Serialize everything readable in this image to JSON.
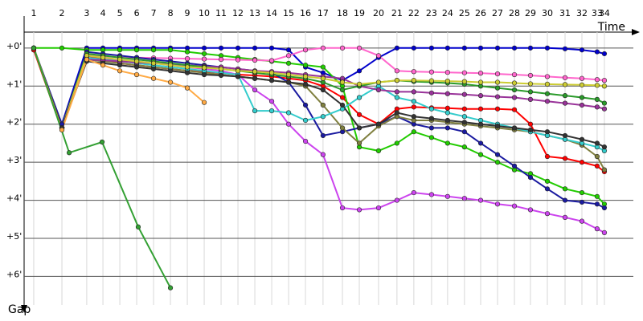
{
  "chart_data": {
    "type": "line",
    "x_label": "Time",
    "y_label": "Gap",
    "grid": true,
    "y_inverted": true,
    "xlim": [
      0.43,
      36.86
    ],
    "ylim": [
      -0.84,
      6.75
    ],
    "xticks": [
      {
        "value": 1,
        "label": "1"
      },
      {
        "value": 2.67,
        "label": "2"
      },
      {
        "value": 4.14,
        "label": "3"
      },
      {
        "value": 5.1,
        "label": "4"
      },
      {
        "value": 6.1,
        "label": "5"
      },
      {
        "value": 7.1,
        "label": "6"
      },
      {
        "value": 8.1,
        "label": "7"
      },
      {
        "value": 9.1,
        "label": "8"
      },
      {
        "value": 10.1,
        "label": "9"
      },
      {
        "value": 11.1,
        "label": "10"
      },
      {
        "value": 12.1,
        "label": "11"
      },
      {
        "value": 13.1,
        "label": "12"
      },
      {
        "value": 14.1,
        "label": "13"
      },
      {
        "value": 15.1,
        "label": "14"
      },
      {
        "value": 16.1,
        "label": "15"
      },
      {
        "value": 17.1,
        "label": "16"
      },
      {
        "value": 18.14,
        "label": "17"
      },
      {
        "value": 19.29,
        "label": "18"
      },
      {
        "value": 20.29,
        "label": "19"
      },
      {
        "value": 21.43,
        "label": "20"
      },
      {
        "value": 22.52,
        "label": "21"
      },
      {
        "value": 23.52,
        "label": "22"
      },
      {
        "value": 24.57,
        "label": "23"
      },
      {
        "value": 25.52,
        "label": "24"
      },
      {
        "value": 26.52,
        "label": "25"
      },
      {
        "value": 27.48,
        "label": "26"
      },
      {
        "value": 28.48,
        "label": "27"
      },
      {
        "value": 29.48,
        "label": "28"
      },
      {
        "value": 30.43,
        "label": "29"
      },
      {
        "value": 31.43,
        "label": "30"
      },
      {
        "value": 32.48,
        "label": "31"
      },
      {
        "value": 33.48,
        "label": "32"
      },
      {
        "value": 34.38,
        "label": "33"
      },
      {
        "value": 34.81,
        "label": "34"
      }
    ],
    "yticks": [
      {
        "value": 0,
        "label": "+0'"
      },
      {
        "value": 1,
        "label": "+1'"
      },
      {
        "value": 2,
        "label": "+2'"
      },
      {
        "value": 3,
        "label": "+3'"
      },
      {
        "value": 4,
        "label": "+4'"
      },
      {
        "value": 5,
        "label": "+5'"
      },
      {
        "value": 6,
        "label": "+6'"
      }
    ],
    "x": [
      1,
      2.67,
      4.14,
      5.1,
      6.1,
      7.1,
      8.1,
      9.1,
      10.1,
      11.1,
      12.1,
      13.1,
      14.1,
      15.1,
      16.1,
      17.1,
      18.14,
      19.29,
      20.29,
      21.43,
      22.52,
      23.52,
      24.57,
      25.52,
      26.52,
      27.48,
      28.48,
      29.48,
      30.43,
      31.43,
      32.48,
      33.48,
      34.38,
      34.81
    ],
    "series": [
      {
        "color": "#0000cc",
        "values": [
          0.05,
          2.0,
          0,
          0,
          0,
          0,
          0,
          0,
          0,
          0,
          0,
          0,
          0,
          0,
          0.05,
          0.5,
          0.65,
          0.85,
          0.6,
          0.25,
          0,
          0,
          0,
          0,
          0,
          0,
          0,
          0,
          0,
          0,
          0.02,
          0.05,
          0.1,
          0.15
        ]
      },
      {
        "color": "#ff0000",
        "values": [
          0.05,
          2.15,
          0.2,
          0.3,
          0.4,
          0.45,
          0.5,
          0.55,
          0.6,
          0.62,
          0.65,
          0.7,
          0.72,
          0.75,
          0.8,
          0.85,
          1.0,
          1.3,
          1.75,
          2.0,
          1.6,
          1.55,
          1.57,
          1.58,
          1.6,
          1.6,
          1.6,
          1.62,
          2.0,
          2.85,
          2.9,
          3.0,
          3.1,
          3.25
        ]
      },
      {
        "color": "#22cc00",
        "values": [
          0,
          0,
          0.05,
          0.05,
          0.05,
          0.05,
          0.05,
          0.05,
          0.1,
          0.15,
          0.2,
          0.25,
          0.3,
          0.35,
          0.4,
          0.45,
          0.5,
          1.0,
          2.6,
          2.7,
          2.5,
          2.2,
          2.35,
          2.5,
          2.6,
          2.8,
          3.0,
          3.2,
          3.3,
          3.5,
          3.7,
          3.8,
          3.9,
          4.1
        ]
      },
      {
        "color": "#cc44ee",
        "values": [
          0,
          2.1,
          0.3,
          0.3,
          0.32,
          0.35,
          0.4,
          0.45,
          0.5,
          0.55,
          0.6,
          0.7,
          1.1,
          1.4,
          2.0,
          2.45,
          2.8,
          4.2,
          4.25,
          4.2,
          4.0,
          3.8,
          3.85,
          3.9,
          3.95,
          4.0,
          4.1,
          4.15,
          4.25,
          4.35,
          4.45,
          4.55,
          4.75,
          4.85
        ]
      },
      {
        "color": "#ff66cc",
        "values": [
          0,
          2.1,
          0.2,
          0.22,
          0.24,
          0.25,
          0.26,
          0.27,
          0.28,
          0.29,
          0.3,
          0.31,
          0.32,
          0.33,
          0.2,
          0.05,
          0,
          0,
          0,
          0.2,
          0.6,
          0.62,
          0.63,
          0.64,
          0.65,
          0.66,
          0.68,
          0.7,
          0.72,
          0.75,
          0.78,
          0.8,
          0.83,
          0.85
        ]
      },
      {
        "color": "#1a1aa0",
        "values": [
          0,
          2.0,
          0.1,
          0.15,
          0.2,
          0.25,
          0.3,
          0.35,
          0.4,
          0.45,
          0.5,
          0.55,
          0.6,
          0.65,
          0.9,
          1.5,
          2.3,
          2.2,
          2.1,
          2.0,
          1.8,
          2.0,
          2.1,
          2.1,
          2.2,
          2.5,
          2.8,
          3.1,
          3.4,
          3.7,
          4.0,
          4.05,
          4.1,
          4.2
        ]
      },
      {
        "color": "#808040",
        "values": [
          0,
          2.1,
          0.3,
          0.35,
          0.4,
          0.45,
          0.5,
          0.55,
          0.6,
          0.65,
          0.7,
          0.75,
          0.8,
          0.85,
          0.9,
          1.0,
          1.5,
          2.1,
          2.5,
          2.05,
          1.8,
          1.9,
          1.9,
          1.95,
          2.0,
          2.05,
          2.1,
          2.15,
          2.2,
          2.3,
          2.4,
          2.55,
          2.85,
          3.2
        ]
      },
      {
        "color": "#33cccc",
        "values": [
          0,
          2.1,
          0.25,
          0.3,
          0.35,
          0.4,
          0.45,
          0.5,
          0.55,
          0.6,
          0.65,
          0.7,
          1.65,
          1.65,
          1.7,
          1.9,
          1.8,
          1.6,
          1.3,
          1.0,
          1.3,
          1.4,
          1.6,
          1.7,
          1.8,
          1.9,
          2.0,
          2.1,
          2.2,
          2.3,
          2.4,
          2.5,
          2.6,
          2.7
        ]
      },
      {
        "color": "#993399",
        "values": [
          0,
          2.1,
          0.3,
          0.32,
          0.35,
          0.38,
          0.4,
          0.42,
          0.45,
          0.48,
          0.5,
          0.55,
          0.6,
          0.62,
          0.65,
          0.7,
          0.75,
          0.8,
          1.0,
          1.1,
          1.15,
          1.15,
          1.18,
          1.2,
          1.22,
          1.25,
          1.28,
          1.3,
          1.35,
          1.4,
          1.45,
          1.5,
          1.55,
          1.6
        ]
      },
      {
        "color": "#2a9a2a",
        "values": [
          0,
          2.1,
          0.15,
          0.2,
          0.25,
          0.3,
          0.35,
          0.4,
          0.45,
          0.5,
          0.55,
          0.6,
          0.65,
          0.7,
          0.75,
          0.8,
          0.9,
          1.1,
          1.0,
          0.9,
          0.85,
          0.88,
          0.9,
          0.92,
          0.95,
          1.0,
          1.05,
          1.1,
          1.15,
          1.2,
          1.25,
          1.3,
          1.35,
          1.45
        ]
      },
      {
        "color": "#cccc33",
        "values": [
          0,
          2.1,
          0.2,
          0.25,
          0.3,
          0.35,
          0.4,
          0.45,
          0.5,
          0.52,
          0.55,
          0.6,
          0.62,
          0.65,
          0.7,
          0.75,
          0.8,
          0.9,
          0.95,
          0.9,
          0.85,
          0.85,
          0.86,
          0.87,
          0.88,
          0.9,
          0.9,
          0.92,
          0.94,
          0.95,
          0.96,
          0.97,
          0.98,
          1.0
        ]
      },
      {
        "color": "#333333",
        "values": [
          0,
          2.1,
          0.35,
          0.4,
          0.45,
          0.5,
          0.55,
          0.6,
          0.65,
          0.7,
          0.72,
          0.75,
          0.8,
          0.85,
          0.9,
          0.95,
          1.1,
          1.5,
          2.1,
          2.0,
          1.7,
          1.8,
          1.85,
          1.9,
          1.95,
          2.0,
          2.05,
          2.1,
          2.15,
          2.2,
          2.3,
          2.4,
          2.5,
          2.6
        ]
      },
      {
        "color": "#ffaa44",
        "values": [
          0,
          2.15,
          0.3,
          0.45,
          0.6,
          0.7,
          0.8,
          0.9,
          1.05,
          1.43,
          null,
          null,
          null,
          null,
          null,
          null,
          null,
          null,
          null,
          null,
          null,
          null,
          null,
          null,
          null,
          null,
          null,
          null,
          null,
          null,
          null,
          null,
          null,
          null
        ]
      },
      {
        "color": "#33a033",
        "x": [
          1,
          3.1,
          5.05,
          7.19,
          9.1
        ],
        "values": [
          0,
          2.75,
          2.47,
          4.7,
          6.3
        ]
      }
    ]
  }
}
